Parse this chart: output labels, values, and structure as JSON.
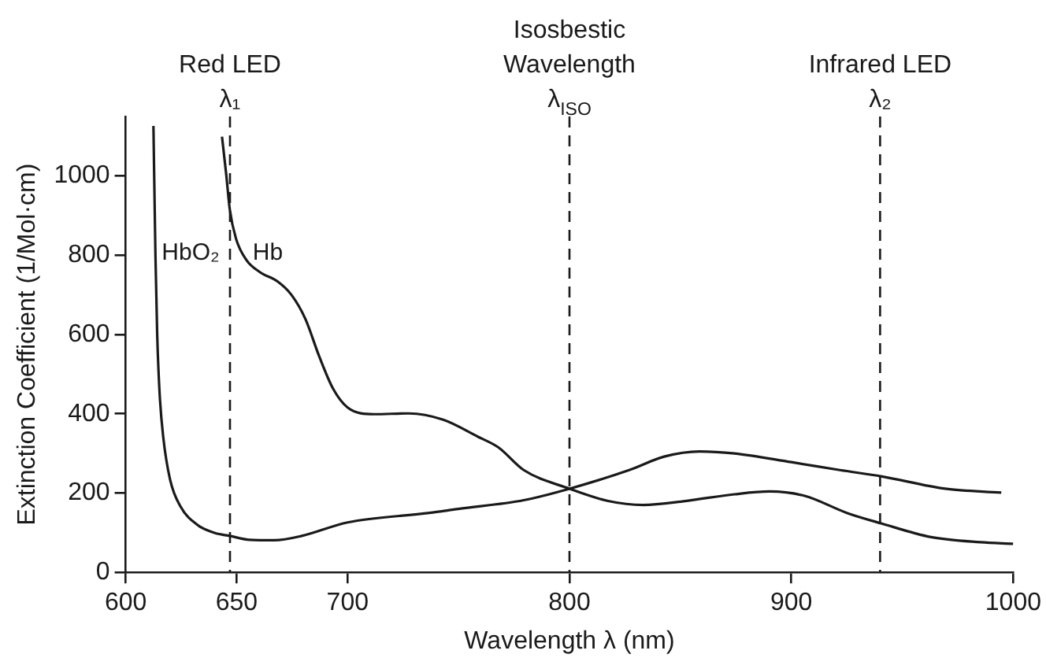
{
  "chart_data": {
    "type": "line",
    "xlabel": "Wavelength λ (nm)",
    "ylabel": "Extinction Coefficient (1/Mol·cm)",
    "xlim": [
      600,
      1000
    ],
    "xticks": [
      600,
      650,
      700,
      800,
      900,
      1000
    ],
    "ylim": [
      0,
      1150
    ],
    "yticks": [
      0,
      200,
      400,
      600,
      800,
      1000
    ],
    "grid": false,
    "legend": false,
    "marker": "none",
    "line_style": "solid",
    "series": [
      {
        "name": "HbO₂",
        "color": "#1a1a1a",
        "x": [
          612.5,
          613.4,
          614.2,
          615.3,
          616.9,
          620,
          624.7,
          632.5,
          640.3,
          646.9,
          655.9,
          666.9,
          679.4,
          700,
          736.9,
          749.9,
          779.4,
          800,
          826.9,
          842.7,
          858.6,
          874.4,
          900,
          921.9,
          940.8,
          969.3,
          994.6
        ],
        "values": [
          1126,
          801,
          599,
          450,
          342,
          234,
          166,
          119,
          99,
          92,
          82,
          81,
          92,
          126,
          150,
          160,
          182,
          211,
          258,
          292,
          305,
          300,
          278,
          258,
          242,
          211,
          201
        ]
      },
      {
        "name": "Hb",
        "color": "#1a1a1a",
        "x": [
          643.4,
          645.3,
          646.9,
          649.7,
          654.4,
          660.6,
          668.4,
          674.7,
          681,
          687.2,
          693.4,
          700,
          711.9,
          727.5,
          743.1,
          758.8,
          768,
          779.4,
          800,
          817.4,
          833.2,
          852.2,
          874.4,
          890.2,
          906,
          925,
          940.8,
          962.9,
          985.2,
          1000
        ],
        "values": [
          1099,
          1004,
          916,
          842,
          788,
          757,
          734,
          700,
          639,
          545,
          464,
          416,
          399,
          401,
          385,
          342,
          315,
          258,
          211,
          180,
          170,
          180,
          197,
          204,
          193,
          150,
          123,
          89,
          76,
          72
        ]
      }
    ],
    "ref_lines": [
      {
        "axis": "x",
        "value": 647,
        "label": "Red LED\nλ₁",
        "line_style": "dashed"
      },
      {
        "axis": "x",
        "value": 800,
        "label": "Isosbestic\nWavelength\nλ$_{ISO}$",
        "line_style": "dashed"
      },
      {
        "axis": "x",
        "value": 940,
        "label": "Infrared LED\nλ₂",
        "line_style": "dashed"
      }
    ]
  }
}
